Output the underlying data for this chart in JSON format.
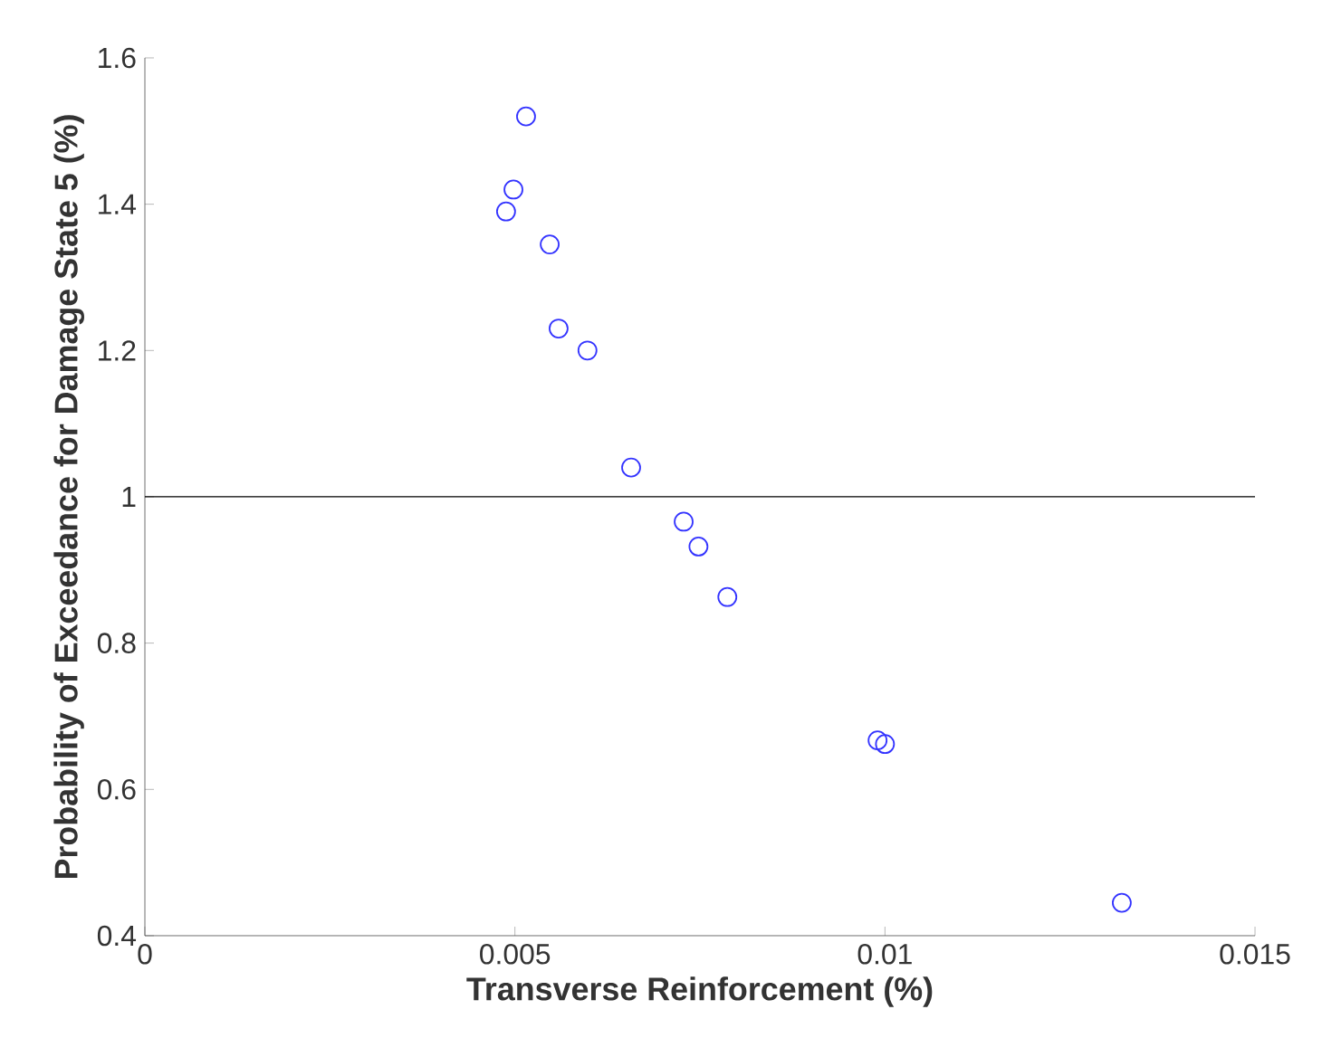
{
  "chart_data": {
    "type": "scatter",
    "xlabel": "Transverse Reinforcement (%)",
    "ylabel": "Probability of Exceedance for Damage State 5 (%)",
    "x": [
      0.00515,
      0.00498,
      0.00488,
      0.00547,
      0.00559,
      0.00598,
      0.00657,
      0.00728,
      0.00748,
      0.00787,
      0.0099,
      0.01,
      0.0132
    ],
    "series": [
      {
        "color": "#3333ff",
        "values": [
          1.52,
          1.42,
          1.39,
          1.345,
          1.23,
          1.2,
          1.04,
          0.966,
          0.932,
          0.863,
          0.667,
          0.662,
          0.445
        ]
      }
    ],
    "marker": "circle",
    "xlim": [
      0,
      0.015
    ],
    "ylim": [
      0.4,
      1.6
    ],
    "xticks": [
      0,
      0.005,
      0.01,
      0.015
    ],
    "yticks": [
      0.4,
      0.6,
      0.8,
      1,
      1.2,
      1.4,
      1.6
    ],
    "ref_lines": [
      {
        "axis": "y",
        "value": 1,
        "color": "#000000"
      }
    ],
    "grid": false
  }
}
